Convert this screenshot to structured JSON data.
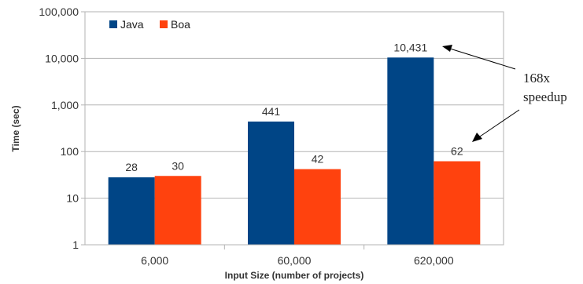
{
  "chart_data": {
    "type": "bar",
    "categories": [
      "6,000",
      "60,000",
      "620,000"
    ],
    "series": [
      {
        "name": "Java",
        "values": [
          28,
          441,
          10431
        ],
        "labels": [
          "28",
          "441",
          "10,431"
        ],
        "color": "#004586"
      },
      {
        "name": "Boa",
        "values": [
          30,
          42,
          62
        ],
        "labels": [
          "30",
          "42",
          "62"
        ],
        "color": "#ff420e"
      }
    ],
    "title": "",
    "xlabel": "Input Size (number of projects)",
    "ylabel": "Time (sec)",
    "yscale": "log",
    "ylim": [
      1,
      100000
    ],
    "yticks": [
      {
        "value": 1,
        "label": "1"
      },
      {
        "value": 10,
        "label": "10"
      },
      {
        "value": 100,
        "label": "100"
      },
      {
        "value": 1000,
        "label": "1,000"
      },
      {
        "value": 10000,
        "label": "10,000"
      },
      {
        "value": 100000,
        "label": "100,000"
      }
    ],
    "grid": true,
    "legend_position": "top-left",
    "annotation": {
      "line1": "168x",
      "line2": "speedup"
    }
  }
}
